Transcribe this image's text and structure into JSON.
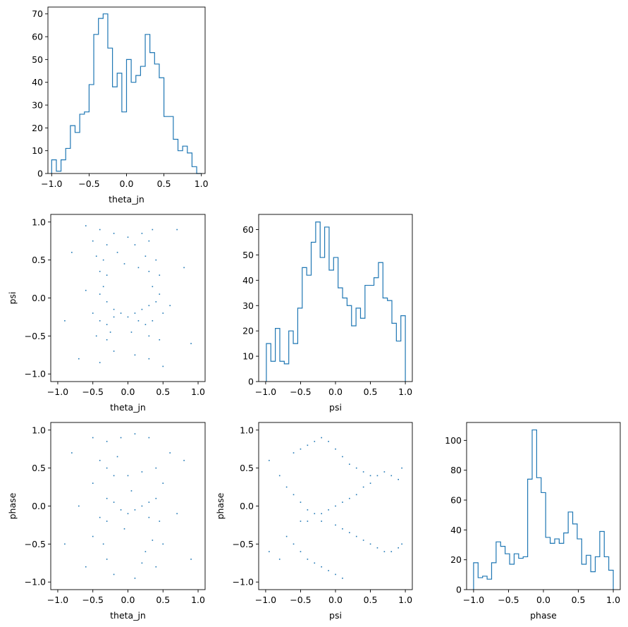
{
  "style": {
    "series_color": "#1f77b4",
    "axis_color": "#000000",
    "background": "#ffffff"
  },
  "chart_data": [
    {
      "id": "hist-theta",
      "type": "histogram",
      "xlabel": "theta_jn",
      "ylabel": "",
      "xlim": [
        -1.05,
        1.05
      ],
      "ylim": [
        0,
        73
      ],
      "xticks": [
        -1.0,
        -0.5,
        0.0,
        0.5,
        1.0
      ],
      "xtick_labels": [
        "−1.0",
        "−0.5",
        "0.0",
        "0.5",
        "1.0"
      ],
      "yticks": [
        0,
        10,
        20,
        30,
        40,
        50,
        60,
        70
      ],
      "ytick_labels": [
        "0",
        "10",
        "20",
        "30",
        "40",
        "50",
        "60",
        "70"
      ],
      "bin_range": [
        -1.0,
        1.0
      ],
      "counts": [
        6,
        1,
        6,
        11,
        21,
        18,
        26,
        27,
        39,
        61,
        68,
        70,
        55,
        38,
        44,
        27,
        50,
        40,
        43,
        47,
        61,
        53,
        48,
        42,
        25,
        25,
        15,
        10,
        12,
        9,
        3,
        0
      ]
    },
    {
      "id": "scatter-theta-psi",
      "type": "scatter",
      "xlabel": "theta_jn",
      "ylabel": "psi",
      "xlim": [
        -1.1,
        1.1
      ],
      "ylim": [
        -1.1,
        1.1
      ],
      "xticks": [
        -1.0,
        -0.5,
        0.0,
        0.5,
        1.0
      ],
      "xtick_labels": [
        "−1.0",
        "−0.5",
        "0.0",
        "0.5",
        "1.0"
      ],
      "yticks": [
        -1.0,
        -0.5,
        0.0,
        0.5,
        1.0
      ],
      "ytick_labels": [
        "−1.0",
        "−0.5",
        "0.0",
        "0.5",
        "1.0"
      ],
      "points": [
        [
          -0.6,
          0.95
        ],
        [
          -0.4,
          0.9
        ],
        [
          -0.2,
          0.85
        ],
        [
          0.0,
          0.8
        ],
        [
          0.2,
          0.85
        ],
        [
          0.35,
          0.9
        ],
        [
          -0.5,
          0.75
        ],
        [
          -0.3,
          0.7
        ],
        [
          0.1,
          0.7
        ],
        [
          0.3,
          0.75
        ],
        [
          -0.45,
          0.55
        ],
        [
          -0.35,
          0.5
        ],
        [
          0.25,
          0.55
        ],
        [
          0.4,
          0.5
        ],
        [
          -0.4,
          0.35
        ],
        [
          -0.3,
          0.3
        ],
        [
          0.3,
          0.35
        ],
        [
          0.45,
          0.3
        ],
        [
          -0.35,
          0.15
        ],
        [
          -0.4,
          0.05
        ],
        [
          0.35,
          0.15
        ],
        [
          0.45,
          0.05
        ],
        [
          -0.3,
          -0.05
        ],
        [
          -0.2,
          -0.15
        ],
        [
          -0.1,
          -0.2
        ],
        [
          0.0,
          -0.25
        ],
        [
          0.1,
          -0.2
        ],
        [
          0.2,
          -0.15
        ],
        [
          0.3,
          -0.1
        ],
        [
          0.4,
          -0.05
        ],
        [
          -0.5,
          -0.2
        ],
        [
          -0.4,
          -0.3
        ],
        [
          -0.3,
          -0.35
        ],
        [
          -0.2,
          -0.25
        ],
        [
          0.15,
          -0.3
        ],
        [
          0.25,
          -0.35
        ],
        [
          0.35,
          -0.3
        ],
        [
          0.5,
          -0.2
        ],
        [
          -0.45,
          -0.5
        ],
        [
          -0.3,
          -0.55
        ],
        [
          0.3,
          -0.5
        ],
        [
          0.45,
          -0.55
        ],
        [
          -0.2,
          -0.7
        ],
        [
          0.1,
          -0.75
        ],
        [
          0.3,
          -0.8
        ],
        [
          -0.4,
          -0.85
        ],
        [
          0.5,
          -0.9
        ],
        [
          -0.8,
          0.6
        ],
        [
          -0.9,
          -0.3
        ],
        [
          0.8,
          0.4
        ],
        [
          0.9,
          -0.6
        ],
        [
          -0.7,
          -0.8
        ],
        [
          0.7,
          0.9
        ],
        [
          -0.05,
          0.45
        ],
        [
          0.05,
          -0.45
        ],
        [
          -0.6,
          0.1
        ],
        [
          0.6,
          -0.1
        ],
        [
          -0.15,
          0.6
        ],
        [
          0.15,
          0.4
        ],
        [
          -0.25,
          -0.45
        ]
      ]
    },
    {
      "id": "hist-psi",
      "type": "histogram",
      "xlabel": "psi",
      "ylabel": "",
      "xlim": [
        -1.1,
        1.1
      ],
      "ylim": [
        0,
        66
      ],
      "xticks": [
        -1.0,
        -0.5,
        0.0,
        0.5,
        1.0
      ],
      "xtick_labels": [
        "−1.0",
        "−0.5",
        "0.0",
        "0.5",
        "1.0"
      ],
      "yticks": [
        0,
        10,
        20,
        30,
        40,
        50,
        60
      ],
      "ytick_labels": [
        "0",
        "10",
        "20",
        "30",
        "40",
        "50",
        "60"
      ],
      "bin_range": [
        -0.99,
        1.0
      ],
      "counts": [
        15,
        8,
        21,
        8,
        7,
        20,
        15,
        29,
        45,
        42,
        55,
        63,
        49,
        61,
        44,
        49,
        37,
        33,
        30,
        22,
        29,
        25,
        38,
        38,
        41,
        47,
        33,
        32,
        23,
        16,
        26
      ]
    },
    {
      "id": "scatter-theta-phase",
      "type": "scatter",
      "xlabel": "theta_jn",
      "ylabel": "phase",
      "xlim": [
        -1.1,
        1.1
      ],
      "ylim": [
        -1.1,
        1.1
      ],
      "xticks": [
        -1.0,
        -0.5,
        0.0,
        0.5,
        1.0
      ],
      "xtick_labels": [
        "−1.0",
        "−0.5",
        "0.0",
        "0.5",
        "1.0"
      ],
      "yticks": [
        -1.0,
        -0.5,
        0.0,
        0.5,
        1.0
      ],
      "ytick_labels": [
        "−1.0",
        "−0.5",
        "0.0",
        "0.5",
        "1.0"
      ],
      "points": [
        [
          -0.5,
          0.9
        ],
        [
          -0.3,
          0.85
        ],
        [
          -0.1,
          0.9
        ],
        [
          0.1,
          0.95
        ],
        [
          0.3,
          0.9
        ],
        [
          -0.4,
          0.6
        ],
        [
          -0.3,
          0.5
        ],
        [
          -0.2,
          0.4
        ],
        [
          0.0,
          0.4
        ],
        [
          0.2,
          0.45
        ],
        [
          0.4,
          0.5
        ],
        [
          -0.5,
          0.3
        ],
        [
          0.5,
          0.3
        ],
        [
          -0.3,
          0.1
        ],
        [
          -0.2,
          0.05
        ],
        [
          -0.1,
          -0.05
        ],
        [
          0.0,
          -0.1
        ],
        [
          0.1,
          -0.05
        ],
        [
          0.2,
          0.0
        ],
        [
          0.3,
          0.05
        ],
        [
          0.4,
          0.1
        ],
        [
          -0.4,
          -0.15
        ],
        [
          -0.3,
          -0.2
        ],
        [
          0.3,
          -0.15
        ],
        [
          0.45,
          -0.2
        ],
        [
          -0.5,
          -0.4
        ],
        [
          -0.35,
          -0.5
        ],
        [
          0.35,
          -0.45
        ],
        [
          0.5,
          -0.5
        ],
        [
          -0.3,
          -0.7
        ],
        [
          0.2,
          -0.75
        ],
        [
          0.4,
          -0.8
        ],
        [
          -0.2,
          -0.9
        ],
        [
          0.1,
          -0.95
        ],
        [
          -0.8,
          0.7
        ],
        [
          -0.9,
          -0.5
        ],
        [
          0.8,
          0.6
        ],
        [
          0.9,
          -0.7
        ],
        [
          -0.7,
          0.0
        ],
        [
          0.7,
          -0.1
        ],
        [
          0.6,
          0.7
        ],
        [
          -0.6,
          -0.8
        ],
        [
          0.05,
          0.2
        ],
        [
          -0.05,
          -0.3
        ],
        [
          -0.15,
          0.65
        ],
        [
          0.25,
          -0.6
        ]
      ]
    },
    {
      "id": "scatter-psi-phase",
      "type": "scatter",
      "xlabel": "psi",
      "ylabel": "phase",
      "xlim": [
        -1.1,
        1.1
      ],
      "ylim": [
        -1.1,
        1.1
      ],
      "xticks": [
        -1.0,
        -0.5,
        0.0,
        0.5,
        1.0
      ],
      "xtick_labels": [
        "−1.0",
        "−0.5",
        "0.0",
        "0.5",
        "1.0"
      ],
      "yticks": [
        -1.0,
        -0.5,
        0.0,
        0.5,
        1.0
      ],
      "ytick_labels": [
        "−1.0",
        "−0.5",
        "0.0",
        "0.5",
        "1.0"
      ],
      "points": [
        [
          -0.6,
          0.7
        ],
        [
          -0.5,
          0.75
        ],
        [
          -0.4,
          0.8
        ],
        [
          -0.3,
          0.85
        ],
        [
          -0.2,
          0.9
        ],
        [
          -0.1,
          0.85
        ],
        [
          0.0,
          0.75
        ],
        [
          0.1,
          0.65
        ],
        [
          0.2,
          0.55
        ],
        [
          0.3,
          0.5
        ],
        [
          0.4,
          0.45
        ],
        [
          0.5,
          0.4
        ],
        [
          0.6,
          0.4
        ],
        [
          0.7,
          0.45
        ],
        [
          0.8,
          0.4
        ],
        [
          0.9,
          0.35
        ],
        [
          -0.8,
          0.4
        ],
        [
          -0.7,
          0.25
        ],
        [
          -0.6,
          0.15
        ],
        [
          -0.5,
          0.05
        ],
        [
          -0.4,
          -0.05
        ],
        [
          -0.3,
          -0.1
        ],
        [
          -0.2,
          -0.1
        ],
        [
          -0.1,
          -0.05
        ],
        [
          0.0,
          0.0
        ],
        [
          0.1,
          0.05
        ],
        [
          0.2,
          0.1
        ],
        [
          0.3,
          0.15
        ],
        [
          0.4,
          0.25
        ],
        [
          0.5,
          0.3
        ],
        [
          -0.5,
          -0.2
        ],
        [
          -0.4,
          -0.2
        ],
        [
          -0.2,
          -0.2
        ],
        [
          0.0,
          -0.25
        ],
        [
          0.1,
          -0.3
        ],
        [
          0.2,
          -0.35
        ],
        [
          0.3,
          -0.4
        ],
        [
          0.4,
          -0.45
        ],
        [
          0.5,
          -0.5
        ],
        [
          0.6,
          -0.55
        ],
        [
          0.7,
          -0.6
        ],
        [
          0.8,
          -0.6
        ],
        [
          0.9,
          -0.55
        ],
        [
          -0.7,
          -0.4
        ],
        [
          -0.6,
          -0.5
        ],
        [
          -0.5,
          -0.6
        ],
        [
          -0.4,
          -0.7
        ],
        [
          -0.3,
          -0.75
        ],
        [
          -0.2,
          -0.8
        ],
        [
          -0.1,
          -0.85
        ],
        [
          0.0,
          -0.9
        ],
        [
          0.1,
          -0.95
        ],
        [
          -0.8,
          -0.7
        ],
        [
          0.95,
          0.5
        ],
        [
          0.95,
          -0.5
        ],
        [
          -0.95,
          0.6
        ],
        [
          -0.95,
          -0.6
        ]
      ]
    },
    {
      "id": "hist-phase",
      "type": "histogram",
      "xlabel": "phase",
      "ylabel": "",
      "xlim": [
        -1.1,
        1.1
      ],
      "ylim": [
        0,
        112
      ],
      "xticks": [
        -1.0,
        -0.5,
        0.0,
        0.5,
        1.0
      ],
      "xtick_labels": [
        "−1.0",
        "−0.5",
        "0.0",
        "0.5",
        "1.0"
      ],
      "yticks": [
        0,
        20,
        40,
        60,
        80,
        100
      ],
      "ytick_labels": [
        "0",
        "20",
        "40",
        "60",
        "80",
        "100"
      ],
      "bin_range": [
        -1.0,
        1.0
      ],
      "counts": [
        18,
        8,
        9,
        7,
        18,
        32,
        29,
        24,
        17,
        24,
        21,
        22,
        74,
        107,
        75,
        65,
        35,
        31,
        34,
        31,
        38,
        52,
        44,
        34,
        17,
        23,
        12,
        22,
        39,
        22,
        13
      ]
    }
  ]
}
